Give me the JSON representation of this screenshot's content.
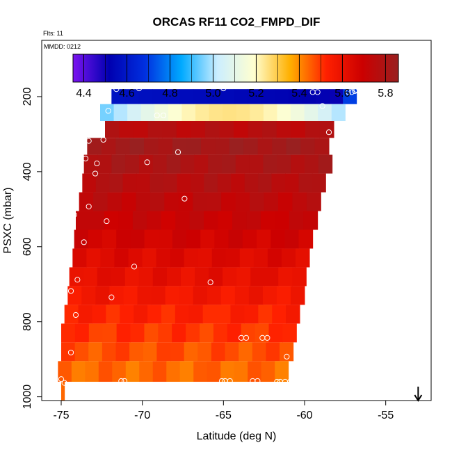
{
  "chart_data": {
    "type": "heatmap",
    "title": "ORCAS RF11 CO2_FMPD_DIF",
    "flights_label": "Flts: 11",
    "date_label": "MMDD: 0212",
    "xlabel": "Latitude (deg N)",
    "ylabel": "PSXC (mbar)",
    "xlim": [
      -76.2,
      -52.2
    ],
    "ylim": [
      1010,
      50
    ],
    "y_reversed": true,
    "x_ticks": [
      -75,
      -70,
      -65,
      -60,
      -55
    ],
    "x_tick_labels": [
      "-75",
      "-70",
      "-65",
      "-60",
      "-55"
    ],
    "y_ticks": [
      200,
      400,
      600,
      800,
      1000
    ],
    "y_tick_labels": [
      "200",
      "400",
      "600",
      "800",
      "1000"
    ],
    "colorbar": {
      "range": [
        4.35,
        5.86
      ],
      "ticks": [
        4.4,
        4.6,
        4.8,
        5.0,
        5.2,
        5.4,
        5.6,
        5.8
      ],
      "tick_labels": [
        "4.4",
        "4.6",
        "4.8",
        "5.0",
        "5.2",
        "5.4",
        "5.6",
        "5.8"
      ],
      "stops": [
        "#7b14f0",
        "#0000b0",
        "#0030e0",
        "#00aaff",
        "#cceeff",
        "#ffffd0",
        "#ffb000",
        "#ff2000",
        "#cc0000",
        "#992020"
      ]
    },
    "bands": [
      {
        "p_top": 180,
        "p_bot": 220,
        "x_left": -71.9,
        "x_right": -56.8,
        "value": 4.55
      },
      {
        "p_top": 220,
        "p_bot": 265,
        "x_left": -72.6,
        "x_right": -57.5,
        "value": 5.1
      },
      {
        "p_top": 265,
        "p_bot": 310,
        "x_left": -72.3,
        "x_right": -58.2,
        "value": 5.76
      },
      {
        "p_top": 310,
        "p_bot": 355,
        "x_left": -73.4,
        "x_right": -58.5,
        "value": 5.83
      },
      {
        "p_top": 355,
        "p_bot": 405,
        "x_left": -73.6,
        "x_right": -58.3,
        "value": 5.8
      },
      {
        "p_top": 405,
        "p_bot": 455,
        "x_left": -73.7,
        "x_right": -58.7,
        "value": 5.77
      },
      {
        "p_top": 455,
        "p_bot": 505,
        "x_left": -73.9,
        "x_right": -59.0,
        "value": 5.74
      },
      {
        "p_top": 505,
        "p_bot": 555,
        "x_left": -74.1,
        "x_right": -59.2,
        "value": 5.71
      },
      {
        "p_top": 555,
        "p_bot": 605,
        "x_left": -74.2,
        "x_right": -59.5,
        "value": 5.68
      },
      {
        "p_top": 605,
        "p_bot": 655,
        "x_left": -74.3,
        "x_right": -59.7,
        "value": 5.64
      },
      {
        "p_top": 655,
        "p_bot": 705,
        "x_left": -74.5,
        "x_right": -59.9,
        "value": 5.61
      },
      {
        "p_top": 705,
        "p_bot": 755,
        "x_left": -74.6,
        "x_right": -60.0,
        "value": 5.57
      },
      {
        "p_top": 755,
        "p_bot": 805,
        "x_left": -74.8,
        "x_right": -60.3,
        "value": 5.53
      },
      {
        "p_top": 805,
        "p_bot": 855,
        "x_left": -75.0,
        "x_right": -60.5,
        "value": 5.5
      },
      {
        "p_top": 855,
        "p_bot": 905,
        "x_left": -75.0,
        "x_right": -60.7,
        "value": 5.47
      },
      {
        "p_top": 905,
        "p_bot": 960,
        "x_left": -75.2,
        "x_right": -61.0,
        "value": 5.44
      },
      {
        "p_top": 960,
        "p_bot": 1010,
        "x_left": -75.0,
        "x_right": -74.8,
        "value": 5.45
      }
    ],
    "points": [
      {
        "x": -71.6,
        "y": 180
      },
      {
        "x": -70.2,
        "y": 178
      },
      {
        "x": -65.0,
        "y": 178
      },
      {
        "x": -59.5,
        "y": 188
      },
      {
        "x": -59.2,
        "y": 188
      },
      {
        "x": -57.3,
        "y": 188
      },
      {
        "x": -57.1,
        "y": 188
      },
      {
        "x": -56.9,
        "y": 185
      },
      {
        "x": -56.8,
        "y": 182
      },
      {
        "x": -72.1,
        "y": 238
      },
      {
        "x": -69.1,
        "y": 250
      },
      {
        "x": -68.7,
        "y": 250
      },
      {
        "x": -58.9,
        "y": 225
      },
      {
        "x": -73.3,
        "y": 318
      },
      {
        "x": -72.4,
        "y": 315
      },
      {
        "x": -58.5,
        "y": 295
      },
      {
        "x": -58.2,
        "y": 330
      },
      {
        "x": -57.9,
        "y": 322
      },
      {
        "x": -67.8,
        "y": 348
      },
      {
        "x": -73.5,
        "y": 365
      },
      {
        "x": -72.8,
        "y": 378
      },
      {
        "x": -69.7,
        "y": 375
      },
      {
        "x": -72.9,
        "y": 405
      },
      {
        "x": -67.4,
        "y": 472
      },
      {
        "x": -73.3,
        "y": 493
      },
      {
        "x": -74.2,
        "y": 515
      },
      {
        "x": -72.2,
        "y": 532
      },
      {
        "x": -73.6,
        "y": 588
      },
      {
        "x": -70.5,
        "y": 653
      },
      {
        "x": -74.0,
        "y": 688
      },
      {
        "x": -74.4,
        "y": 718
      },
      {
        "x": -65.8,
        "y": 695
      },
      {
        "x": -71.9,
        "y": 735
      },
      {
        "x": -74.1,
        "y": 782
      },
      {
        "x": -63.9,
        "y": 843
      },
      {
        "x": -63.6,
        "y": 843
      },
      {
        "x": -62.6,
        "y": 843
      },
      {
        "x": -62.3,
        "y": 843
      },
      {
        "x": -74.4,
        "y": 882
      },
      {
        "x": -61.1,
        "y": 893
      },
      {
        "x": -75.0,
        "y": 953
      },
      {
        "x": -74.8,
        "y": 963
      },
      {
        "x": -71.3,
        "y": 958
      },
      {
        "x": -71.1,
        "y": 958
      },
      {
        "x": -65.1,
        "y": 958
      },
      {
        "x": -64.9,
        "y": 958
      },
      {
        "x": -64.6,
        "y": 958
      },
      {
        "x": -63.2,
        "y": 958
      },
      {
        "x": -62.9,
        "y": 958
      },
      {
        "x": -61.7,
        "y": 960
      },
      {
        "x": -61.5,
        "y": 960
      },
      {
        "x": -61.2,
        "y": 960
      },
      {
        "x": -60.9,
        "y": 960
      }
    ],
    "arrow_marker": {
      "x": -53.0
    }
  }
}
